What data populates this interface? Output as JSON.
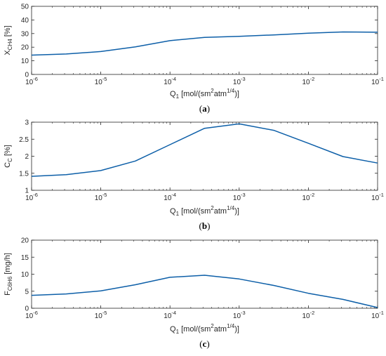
{
  "figure": {
    "captions": [
      "(a)",
      "(b)",
      "(c)"
    ]
  },
  "chart_data": [
    {
      "type": "line",
      "caption": "(a)",
      "xscale": "log",
      "xlim": [
        1e-06,
        0.1
      ],
      "xticks": [
        "10",
        "10",
        "10",
        "10",
        "10",
        "10"
      ],
      "xtick_exps": [
        "-6",
        "-5",
        "-4",
        "-3",
        "-2",
        "-1"
      ],
      "xlabel": {
        "main": "Q",
        "sub": "1",
        "rest1": " [mol/(sm",
        "sup1": "2",
        "rest2": "atm",
        "sup2": "1/4",
        "rest3": ")]"
      },
      "ylabel": {
        "main": "X",
        "sub": "CH4",
        "rest": " [%]"
      },
      "ylim": [
        0,
        50
      ],
      "yticks": [
        "0",
        "10",
        "20",
        "30",
        "40",
        "50"
      ],
      "grid": false,
      "color": "#0d5fa8",
      "series": [
        {
          "x": [
            1e-06,
            3.16e-06,
            1e-05,
            3.16e-05,
            0.0001,
            0.000316,
            0.001,
            0.00316,
            0.01,
            0.0316,
            0.1
          ],
          "y": [
            14.2,
            15,
            16.8,
            20.2,
            24.8,
            27.2,
            28,
            29,
            30.3,
            31.2,
            31
          ]
        }
      ]
    },
    {
      "type": "line",
      "caption": "(b)",
      "xscale": "log",
      "xlim": [
        1e-06,
        0.1
      ],
      "xticks": [
        "10",
        "10",
        "10",
        "10",
        "10",
        "10"
      ],
      "xtick_exps": [
        "-6",
        "-5",
        "-4",
        "-3",
        "-2",
        "-1"
      ],
      "xlabel": {
        "main": "Q",
        "sub": "1",
        "rest1": " [mol/(sm",
        "sup1": "2",
        "rest2": "atm",
        "sup2": "1/4",
        "rest3": ")]"
      },
      "ylabel": {
        "main": "C",
        "sub": "C",
        "rest": " [%]"
      },
      "ylim": [
        1,
        3
      ],
      "yticks": [
        "1",
        "1.5",
        "2",
        "2.5",
        "3"
      ],
      "grid": false,
      "color": "#0d5fa8",
      "series": [
        {
          "x": [
            1e-06,
            3.16e-06,
            1e-05,
            3.16e-05,
            0.0001,
            0.000316,
            0.001,
            0.00316,
            0.01,
            0.0316,
            0.1
          ],
          "y": [
            1.41,
            1.46,
            1.58,
            1.86,
            2.34,
            2.82,
            2.95,
            2.76,
            2.38,
            1.99,
            1.8
          ]
        }
      ]
    },
    {
      "type": "line",
      "caption": "(c)",
      "xscale": "log",
      "xlim": [
        1e-06,
        0.1
      ],
      "xticks": [
        "10",
        "10",
        "10",
        "10",
        "10",
        "10"
      ],
      "xtick_exps": [
        "-6",
        "-5",
        "-4",
        "-3",
        "-2",
        "-1"
      ],
      "xlabel": {
        "main": "Q",
        "sub": "1",
        "rest1": " [mol/(sm",
        "sup1": "2",
        "rest2": "atm",
        "sup2": "1/4",
        "rest3": ")]"
      },
      "ylabel": {
        "main": "F",
        "sub": "C6H6",
        "rest": " [mg/h]"
      },
      "ylim": [
        0,
        20
      ],
      "yticks": [
        "0",
        "5",
        "10",
        "15",
        "20"
      ],
      "grid": false,
      "color": "#0d5fa8",
      "series": [
        {
          "x": [
            1e-06,
            3.16e-06,
            1e-05,
            3.16e-05,
            0.0001,
            0.000316,
            0.001,
            0.00316,
            0.01,
            0.0316,
            0.1
          ],
          "y": [
            3.8,
            4.2,
            5.1,
            6.9,
            9.1,
            9.7,
            8.6,
            6.7,
            4.4,
            2.6,
            0.2
          ]
        }
      ]
    }
  ]
}
